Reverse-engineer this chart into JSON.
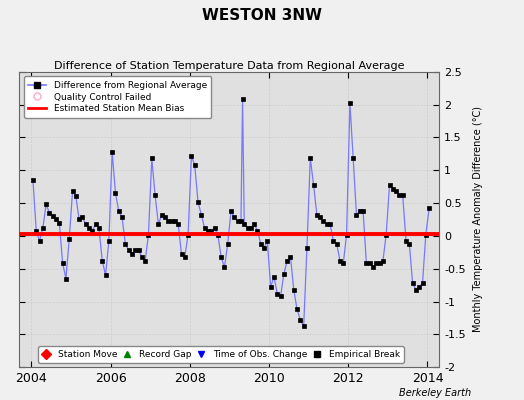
{
  "title": "WESTON 3NW",
  "subtitle": "Difference of Station Temperature Data from Regional Average",
  "ylabel": "Monthly Temperature Anomaly Difference (°C)",
  "attribution": "Berkeley Earth",
  "xlim": [
    2003.7,
    2014.3
  ],
  "ylim": [
    -2.0,
    2.5
  ],
  "yticks": [
    -2.0,
    -1.5,
    -1.0,
    -0.5,
    0.0,
    0.5,
    1.0,
    1.5,
    2.0,
    2.5
  ],
  "xticks": [
    2004,
    2006,
    2008,
    2010,
    2012,
    2014
  ],
  "bias": 0.03,
  "bg_color": "#e0e0e0",
  "line_color": "#7777ff",
  "marker_color": "#000000",
  "bias_color": "#ff0000",
  "time_series": [
    [
      2004.042,
      0.85
    ],
    [
      2004.125,
      0.08
    ],
    [
      2004.208,
      -0.08
    ],
    [
      2004.292,
      0.12
    ],
    [
      2004.375,
      0.48
    ],
    [
      2004.458,
      0.35
    ],
    [
      2004.542,
      0.3
    ],
    [
      2004.625,
      0.25
    ],
    [
      2004.708,
      0.2
    ],
    [
      2004.792,
      -0.42
    ],
    [
      2004.875,
      -0.65
    ],
    [
      2004.958,
      -0.05
    ],
    [
      2005.042,
      0.68
    ],
    [
      2005.125,
      0.6
    ],
    [
      2005.208,
      0.25
    ],
    [
      2005.292,
      0.28
    ],
    [
      2005.375,
      0.18
    ],
    [
      2005.458,
      0.12
    ],
    [
      2005.542,
      0.08
    ],
    [
      2005.625,
      0.18
    ],
    [
      2005.708,
      0.12
    ],
    [
      2005.792,
      -0.38
    ],
    [
      2005.875,
      -0.6
    ],
    [
      2005.958,
      -0.08
    ],
    [
      2006.042,
      1.28
    ],
    [
      2006.125,
      0.65
    ],
    [
      2006.208,
      0.38
    ],
    [
      2006.292,
      0.28
    ],
    [
      2006.375,
      -0.12
    ],
    [
      2006.458,
      -0.22
    ],
    [
      2006.542,
      -0.28
    ],
    [
      2006.625,
      -0.22
    ],
    [
      2006.708,
      -0.22
    ],
    [
      2006.792,
      -0.32
    ],
    [
      2006.875,
      -0.38
    ],
    [
      2006.958,
      0.02
    ],
    [
      2007.042,
      1.18
    ],
    [
      2007.125,
      0.62
    ],
    [
      2007.208,
      0.18
    ],
    [
      2007.292,
      0.32
    ],
    [
      2007.375,
      0.28
    ],
    [
      2007.458,
      0.22
    ],
    [
      2007.542,
      0.22
    ],
    [
      2007.625,
      0.22
    ],
    [
      2007.708,
      0.18
    ],
    [
      2007.792,
      -0.28
    ],
    [
      2007.875,
      -0.32
    ],
    [
      2007.958,
      0.02
    ],
    [
      2008.042,
      1.22
    ],
    [
      2008.125,
      1.08
    ],
    [
      2008.208,
      0.52
    ],
    [
      2008.292,
      0.32
    ],
    [
      2008.375,
      0.12
    ],
    [
      2008.458,
      0.08
    ],
    [
      2008.542,
      0.08
    ],
    [
      2008.625,
      0.12
    ],
    [
      2008.708,
      0.02
    ],
    [
      2008.792,
      -0.32
    ],
    [
      2008.875,
      -0.48
    ],
    [
      2008.958,
      -0.12
    ],
    [
      2009.042,
      0.38
    ],
    [
      2009.125,
      0.28
    ],
    [
      2009.208,
      0.22
    ],
    [
      2009.292,
      0.22
    ],
    [
      2009.333,
      2.08
    ],
    [
      2009.375,
      0.18
    ],
    [
      2009.458,
      0.12
    ],
    [
      2009.542,
      0.12
    ],
    [
      2009.625,
      0.18
    ],
    [
      2009.708,
      0.08
    ],
    [
      2009.792,
      -0.12
    ],
    [
      2009.875,
      -0.18
    ],
    [
      2009.958,
      -0.08
    ],
    [
      2010.042,
      -0.78
    ],
    [
      2010.125,
      -0.62
    ],
    [
      2010.208,
      -0.88
    ],
    [
      2010.292,
      -0.92
    ],
    [
      2010.375,
      -0.58
    ],
    [
      2010.458,
      -0.38
    ],
    [
      2010.542,
      -0.32
    ],
    [
      2010.625,
      -0.82
    ],
    [
      2010.708,
      -1.12
    ],
    [
      2010.792,
      -1.28
    ],
    [
      2010.875,
      -1.38
    ],
    [
      2010.958,
      -0.18
    ],
    [
      2011.042,
      1.18
    ],
    [
      2011.125,
      0.78
    ],
    [
      2011.208,
      0.32
    ],
    [
      2011.292,
      0.28
    ],
    [
      2011.375,
      0.22
    ],
    [
      2011.458,
      0.18
    ],
    [
      2011.542,
      0.18
    ],
    [
      2011.625,
      -0.08
    ],
    [
      2011.708,
      -0.12
    ],
    [
      2011.792,
      -0.38
    ],
    [
      2011.875,
      -0.42
    ],
    [
      2011.958,
      0.02
    ],
    [
      2012.042,
      2.02
    ],
    [
      2012.125,
      1.18
    ],
    [
      2012.208,
      0.32
    ],
    [
      2012.292,
      0.38
    ],
    [
      2012.375,
      0.38
    ],
    [
      2012.458,
      -0.42
    ],
    [
      2012.542,
      -0.42
    ],
    [
      2012.625,
      -0.48
    ],
    [
      2012.708,
      -0.42
    ],
    [
      2012.792,
      -0.42
    ],
    [
      2012.875,
      -0.38
    ],
    [
      2012.958,
      0.02
    ],
    [
      2013.042,
      0.78
    ],
    [
      2013.125,
      0.72
    ],
    [
      2013.208,
      0.68
    ],
    [
      2013.292,
      0.62
    ],
    [
      2013.375,
      0.62
    ],
    [
      2013.458,
      -0.08
    ],
    [
      2013.542,
      -0.12
    ],
    [
      2013.625,
      -0.72
    ],
    [
      2013.708,
      -0.82
    ],
    [
      2013.792,
      -0.78
    ],
    [
      2013.875,
      -0.72
    ],
    [
      2013.958,
      0.02
    ],
    [
      2014.042,
      0.42
    ]
  ]
}
